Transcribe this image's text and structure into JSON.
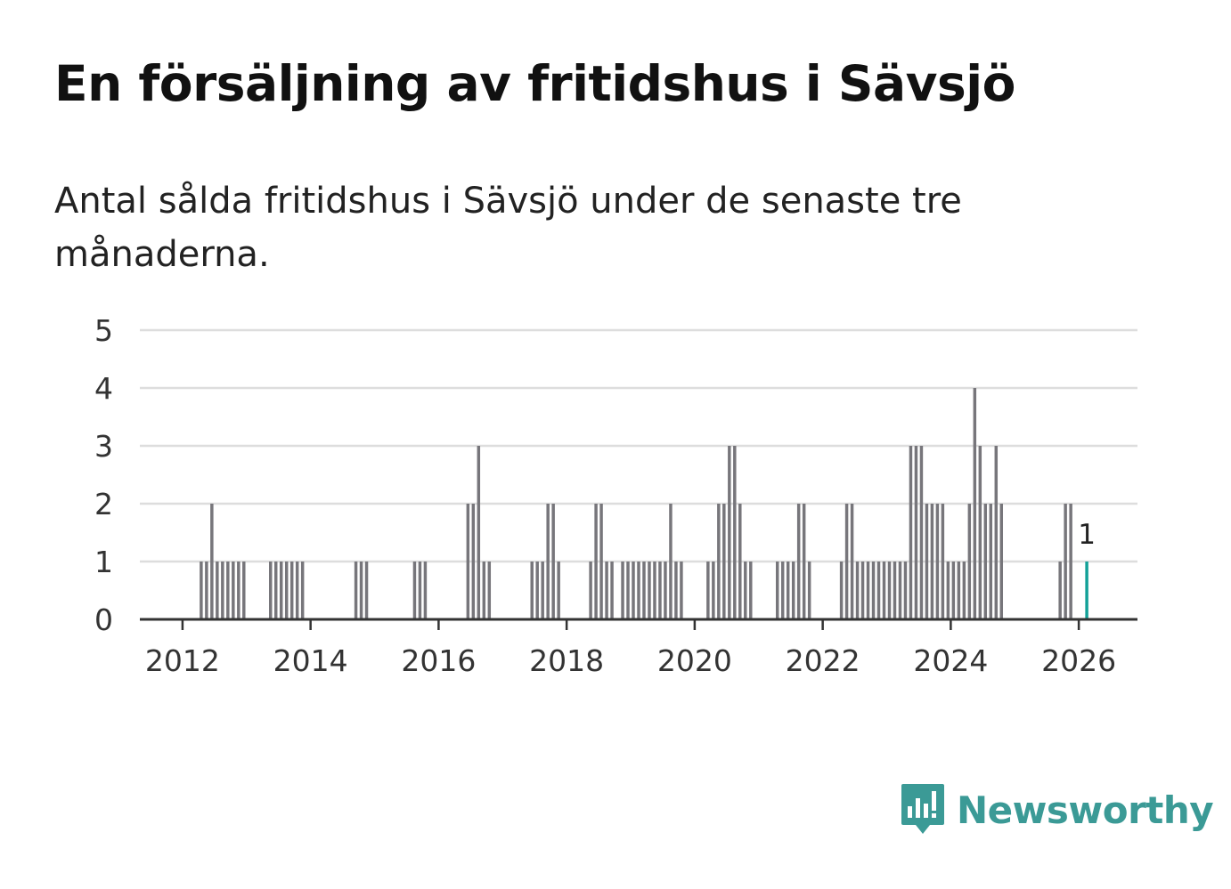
{
  "title": "En försäljning av fritidshus i Sävsjö",
  "subtitle": "Antal sålda fritidshus i Sävsjö under de senaste tre månaderna.",
  "brand": {
    "name": "Newsworthy",
    "color": "#3b9a96",
    "icon": "newsworthy-logo-icon"
  },
  "chart_data": {
    "type": "bar",
    "bar_color": "#77767b",
    "highlight_color": "#13a198",
    "grid": true,
    "xlim": [
      "2011-05",
      "2026-12"
    ],
    "ylim": [
      0,
      5
    ],
    "x_ticks": [
      "2012",
      "2014",
      "2016",
      "2018",
      "2020",
      "2022",
      "2024",
      "2026"
    ],
    "y_ticks": [
      "0",
      "1",
      "2",
      "3",
      "4",
      "5"
    ],
    "x": [
      "2012-04",
      "2012-05",
      "2012-06",
      "2012-07",
      "2012-08",
      "2012-09",
      "2012-10",
      "2012-11",
      "2012-12",
      "2013-05",
      "2013-06",
      "2013-07",
      "2013-08",
      "2013-09",
      "2013-10",
      "2013-11",
      "2014-09",
      "2014-10",
      "2014-11",
      "2015-08",
      "2015-09",
      "2015-10",
      "2016-06",
      "2016-07",
      "2016-08",
      "2016-09",
      "2016-10",
      "2017-06",
      "2017-07",
      "2017-08",
      "2017-09",
      "2017-10",
      "2017-11",
      "2018-05",
      "2018-06",
      "2018-07",
      "2018-08",
      "2018-09",
      "2018-11",
      "2018-12",
      "2019-01",
      "2019-02",
      "2019-03",
      "2019-04",
      "2019-05",
      "2019-06",
      "2019-07",
      "2019-08",
      "2019-09",
      "2019-10",
      "2020-03",
      "2020-04",
      "2020-05",
      "2020-06",
      "2020-07",
      "2020-08",
      "2020-09",
      "2020-10",
      "2020-11",
      "2021-04",
      "2021-05",
      "2021-06",
      "2021-07",
      "2021-08",
      "2021-09",
      "2021-10",
      "2022-04",
      "2022-05",
      "2022-06",
      "2022-07",
      "2022-08",
      "2022-09",
      "2022-10",
      "2022-11",
      "2022-12",
      "2023-01",
      "2023-02",
      "2023-03",
      "2023-04",
      "2023-05",
      "2023-06",
      "2023-07",
      "2023-08",
      "2023-09",
      "2023-10",
      "2023-11",
      "2023-12",
      "2024-01",
      "2024-02",
      "2024-03",
      "2024-04",
      "2024-05",
      "2024-06",
      "2024-07",
      "2024-08",
      "2024-09",
      "2024-10",
      "2025-09",
      "2025-10",
      "2025-11",
      "2026-02"
    ],
    "values": [
      1,
      1,
      2,
      1,
      1,
      1,
      1,
      1,
      1,
      1,
      1,
      1,
      1,
      1,
      1,
      1,
      1,
      1,
      1,
      1,
      1,
      1,
      2,
      2,
      3,
      1,
      1,
      1,
      1,
      1,
      2,
      2,
      1,
      1,
      2,
      2,
      1,
      1,
      1,
      1,
      1,
      1,
      1,
      1,
      1,
      1,
      1,
      2,
      1,
      1,
      1,
      1,
      2,
      2,
      3,
      3,
      2,
      1,
      1,
      1,
      1,
      1,
      1,
      2,
      2,
      1,
      1,
      2,
      2,
      1,
      1,
      1,
      1,
      1,
      1,
      1,
      1,
      1,
      1,
      3,
      3,
      3,
      2,
      2,
      2,
      2,
      1,
      1,
      1,
      1,
      2,
      4,
      3,
      2,
      2,
      3,
      2,
      1,
      2,
      2,
      1
    ],
    "highlight": {
      "x": "2026-02",
      "value": 1,
      "label": "1"
    }
  }
}
